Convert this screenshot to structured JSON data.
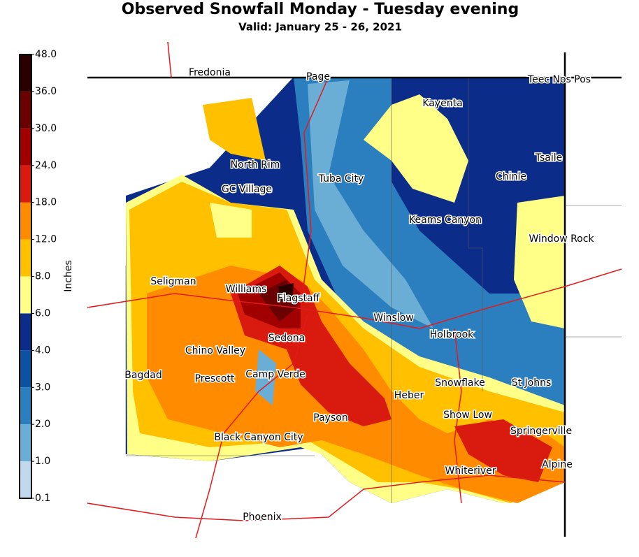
{
  "header": {
    "title": "Observed Snowfall Monday - Tuesday evening",
    "subtitle": "Valid: January 25 - 26, 2021"
  },
  "legend": {
    "label": "Inches",
    "ticks": [
      0.1,
      {
        "value": 1,
        "label": "1.0"
      },
      {
        "value": 2,
        "label": "2.0"
      },
      {
        "value": 3,
        "label": "3.0"
      },
      {
        "value": 4,
        "label": "4.0"
      },
      {
        "value": 6,
        "label": "6.0"
      },
      {
        "value": 8,
        "label": "8.0"
      },
      {
        "value": 12,
        "label": "12.0"
      },
      {
        "value": 18,
        "label": "18.0"
      },
      {
        "value": 24,
        "label": "24.0"
      },
      {
        "value": 30,
        "label": "30.0"
      },
      {
        "value": 36,
        "label": "36.0"
      },
      {
        "value": 48,
        "label": "48.0"
      }
    ],
    "colors": [
      "#c2d9ed",
      "#6aaed6",
      "#2c7fbf",
      "#0d52a0",
      "#0c2c8a",
      "#ffff88",
      "#ffc000",
      "#ff8c00",
      "#d81b0e",
      "#a00000",
      "#6b0000",
      "#2b0000"
    ]
  },
  "places": [
    "Fredonia",
    "Page",
    "Teec Nos Pos",
    "Kayenta",
    "Tsaile",
    "North Rim",
    "GC Village",
    "Tuba City",
    "Chinle",
    "Keams Canyon",
    "Window Rock",
    "Seligman",
    "Williams",
    "Flagstaff",
    "Winslow",
    "Holbrook",
    "Sedona",
    "Chino Valley",
    "Bagdad",
    "Prescott",
    "Camp Verde",
    "Snowflake",
    "St Johns",
    "Heber",
    "Show Low",
    "Payson",
    "Springerville",
    "Black Canyon City",
    "Alpine",
    "Whiteriver",
    "Phoenix"
  ]
}
